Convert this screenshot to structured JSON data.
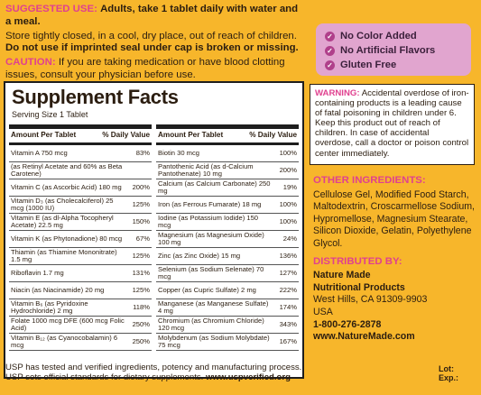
{
  "top": {
    "usage_label": "SUGGESTED USE:",
    "usage_text": "Adults, take 1 tablet daily with water and a meal.",
    "storage": "Store tightly closed, in a cool, dry place, out of reach of children.",
    "seal": "Do not use if imprinted seal under cap is broken or missing.",
    "caution_label": "CAUTION:",
    "caution_text": "If you are taking medication or have blood clotting issues, consult your physician before use."
  },
  "badge": [
    "No Color Added",
    "No Artificial Flavors",
    "Gluten Free"
  ],
  "facts": {
    "title": "Supplement Facts",
    "serving": "Serving Size 1 Tablet",
    "head_amount": "Amount Per Tablet",
    "head_dv": "% Daily Value",
    "left": [
      {
        "n": "Vitamin A 750 mcg",
        "v": "83%"
      },
      {
        "n": "(as Retinyl Acetate and 60% as Beta Carotene)",
        "v": ""
      },
      {
        "n": "Vitamin C (as Ascorbic Acid) 180 mg",
        "v": "200%"
      },
      {
        "n": "Vitamin D₃ (as Cholecalciferol) 25 mcg (1000 IU)",
        "v": "125%"
      },
      {
        "n": "Vitamin E (as dl-Alpha Tocopheryl Acetate) 22.5 mg",
        "v": "150%"
      },
      {
        "n": "Vitamin K (as Phytonadione) 80 mcg",
        "v": "67%"
      },
      {
        "n": "Thiamin (as Thiamine Mononitrate) 1.5 mg",
        "v": "125%"
      },
      {
        "n": "Riboflavin 1.7 mg",
        "v": "131%"
      },
      {
        "n": "Niacin (as Niacinamide) 20 mg",
        "v": "125%"
      },
      {
        "n": "Vitamin B₆ (as Pyridoxine Hydrochloride) 2 mg",
        "v": "118%"
      },
      {
        "n": "Folate 1000 mcg DFE (600 mcg Folic Acid)",
        "v": "250%"
      },
      {
        "n": "Vitamin B₁₂ (as Cyanocobalamin) 6 mcg",
        "v": "250%"
      }
    ],
    "right": [
      {
        "n": "Biotin 30 mcg",
        "v": "100%"
      },
      {
        "n": "Pantothenic Acid (as d-Calcium Pantothenate) 10 mg",
        "v": "200%"
      },
      {
        "n": "Calcium (as Calcium Carbonate) 250 mg",
        "v": "19%"
      },
      {
        "n": "Iron (as Ferrous Fumarate) 18 mg",
        "v": "100%"
      },
      {
        "n": "Iodine (as Potassium Iodide) 150 mcg",
        "v": "100%"
      },
      {
        "n": "Magnesium (as Magnesium Oxide) 100 mg",
        "v": "24%"
      },
      {
        "n": "Zinc (as Zinc Oxide) 15 mg",
        "v": "136%"
      },
      {
        "n": "Selenium (as Sodium Selenate) 70 mcg",
        "v": "127%"
      },
      {
        "n": "Copper (as Cupric Sulfate) 2 mg",
        "v": "222%"
      },
      {
        "n": "Manganese (as Manganese Sulfate) 4 mg",
        "v": "174%"
      },
      {
        "n": "Chromium (as Chromium Chloride) 120 mcg",
        "v": "343%"
      },
      {
        "n": "Molybdenum (as Sodium Molybdate) 75 mcg",
        "v": "167%"
      }
    ]
  },
  "footer": {
    "line1": "USP has tested and verified ingredients, potency and manufacturing process.",
    "line2_prefix": "USP sets official standards for dietary supplements. ",
    "line2_url": "www.uspverified.org"
  },
  "warning": {
    "label": "WARNING:",
    "text": "Accidental overdose of iron-containing products is a leading cause of fatal poisoning in children under 6. Keep this product out of reach of children. In case of accidental overdose, call a doctor or poison control center immediately."
  },
  "ingredients": {
    "label": "OTHER INGREDIENTS:",
    "text": "Cellulose Gel, Modified Food Starch, Maltodextrin, Croscarmellose Sodium, Hypromellose, Magnesium Stearate, Silicon Dioxide, Gelatin, Polyethylene Glycol."
  },
  "distributor": {
    "label": "DISTRIBUTED BY:",
    "name1": "Nature Made",
    "name2": "Nutritional Products",
    "city": "West Hills, CA 91309-9903",
    "country": "USA",
    "phone": "1-800-276-2878",
    "web": "www.NatureMade.com"
  },
  "lot": {
    "lot": "Lot:",
    "exp": "Exp.:"
  }
}
